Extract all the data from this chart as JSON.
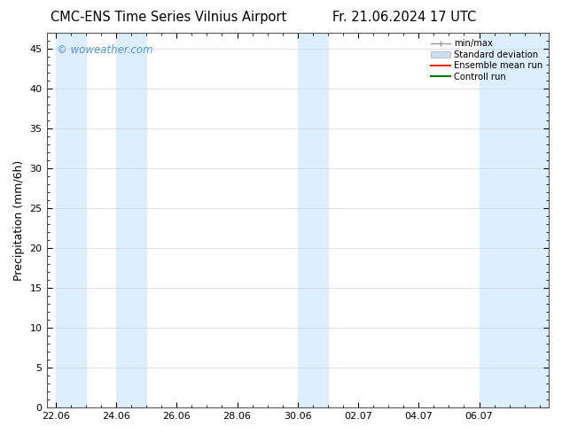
{
  "title_left": "CMC-ENS Time Series Vilnius Airport",
  "title_right": "Fr. 21.06.2024 17 UTC",
  "ylabel": "Precipitation (mm/6h)",
  "watermark": "© woweather.com",
  "watermark_color": "#5599cc",
  "background_color": "#ffffff",
  "plot_bg_color": "#ffffff",
  "ylim": [
    0,
    47
  ],
  "yticks": [
    0,
    5,
    10,
    15,
    20,
    25,
    30,
    35,
    40,
    45
  ],
  "shade_color": "#ddeeff",
  "shade_alpha": 1.0,
  "shade_regions": [
    [
      0.0,
      1.0
    ],
    [
      2.0,
      3.0
    ],
    [
      8.0,
      9.0
    ],
    [
      14.0,
      16.5
    ]
  ],
  "xtick_labels": [
    "22.06",
    "24.06",
    "26.06",
    "28.06",
    "30.06",
    "02.07",
    "04.07",
    "06.07"
  ],
  "xtick_positions": [
    0.0,
    2.0,
    4.0,
    6.0,
    8.0,
    10.0,
    12.0,
    14.0
  ],
  "xlim": [
    -0.3,
    16.3
  ],
  "legend_labels": [
    "min/max",
    "Standard deviation",
    "Ensemble mean run",
    "Controll run"
  ],
  "legend_colors": [
    "#999999",
    "#ccdff0",
    "#ff2200",
    "#007700"
  ],
  "title_fontsize": 10.5,
  "label_fontsize": 9,
  "tick_fontsize": 8
}
